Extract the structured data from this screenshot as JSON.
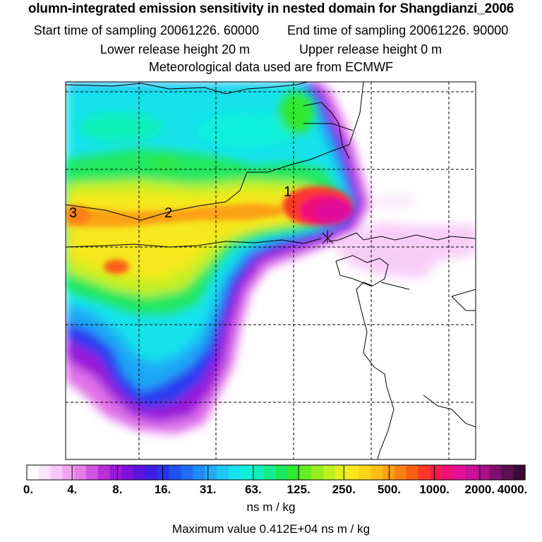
{
  "header": {
    "title": "olumn-integrated emission sensitivity in nested domain for Shangdianzi_2006",
    "start_label": "Start time of sampling 20061226. 60000",
    "end_label": "End time of sampling 20061226. 90000",
    "lower_label": "Lower release height   20 m",
    "upper_label": "Upper release height    0 m",
    "met_label": "Meteorological data used are from ECMWF"
  },
  "map": {
    "contour_labels": [
      "1",
      "2",
      "3"
    ],
    "colors": {
      "frame": "#000000",
      "grid": "#000000",
      "coastline": "#000000"
    }
  },
  "colorbar": {
    "tick_labels": [
      "0.",
      "4.",
      "8.",
      "16.",
      "31.",
      "63.",
      "125.",
      "250.",
      "500.",
      "1000.",
      "2000.",
      "4000."
    ],
    "colors": [
      "#ffffff",
      "#fbe3fb",
      "#f7c8f7",
      "#f0a5f2",
      "#e37ee8",
      "#d052e0",
      "#b92ed8",
      "#9b18d8",
      "#7a12dc",
      "#5a14e0",
      "#3e1ee6",
      "#2b32ec",
      "#2052f0",
      "#1e6ef4",
      "#1e8cf6",
      "#22aaf6",
      "#1ec8f2",
      "#14e2ec",
      "#0ef0dc",
      "#10f0b8",
      "#14ec8c",
      "#18e85a",
      "#30e82e",
      "#64ec20",
      "#94ee20",
      "#c0f020",
      "#e4f01e",
      "#f6e81c",
      "#fcd418",
      "#fcbc16",
      "#fca014",
      "#fc8012",
      "#fc5c14",
      "#fc3828",
      "#f81a4c",
      "#f0107a",
      "#e0109a",
      "#c81098",
      "#a81088",
      "#801070",
      "#581050",
      "#3a0a36"
    ],
    "units": "ns m / kg",
    "max_label": "Maximum value  0.412E+04 ns m / kg"
  }
}
